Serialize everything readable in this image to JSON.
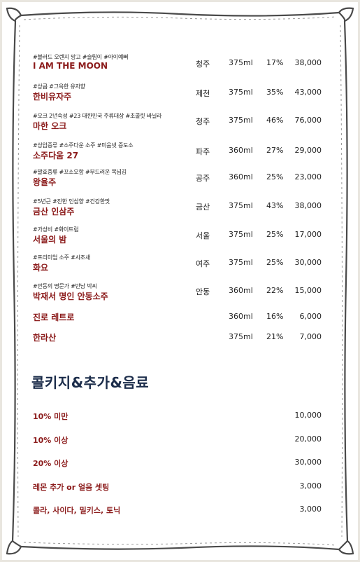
{
  "menu": {
    "items": [
      {
        "tags": "#블러드 오렌지 망고 #슬립이 #아이예뻐",
        "name": "I AM THE MOON",
        "origin": "청주",
        "volume": "375ml",
        "abv": "17%",
        "price": "38,000"
      },
      {
        "tags": "#상큼 #그윽한 유자향",
        "name": "한비유자주",
        "origin": "제천",
        "volume": "375ml",
        "abv": "35%",
        "price": "43,000"
      },
      {
        "tags": "#오크 2년숙성 #23 대한민국 주류대상 #초콜릿 바닐라",
        "name": "마한 오크",
        "origin": "청주",
        "volume": "375ml",
        "abv": "46%",
        "price": "76,000"
      },
      {
        "tags": "#상압증류 #소주다운 소주 #미움넷 증도소",
        "name": "소주다움 27",
        "origin": "파주",
        "volume": "360ml",
        "abv": "27%",
        "price": "29,000"
      },
      {
        "tags": "#발효증류 #꼬소오함 #부드러운 목넘김",
        "name": "왕율주",
        "origin": "공주",
        "volume": "360ml",
        "abv": "25%",
        "price": "23,000"
      },
      {
        "tags": "#5년근 #진한 인삼향 #건강한맛",
        "name": "금산 인삼주",
        "origin": "금산",
        "volume": "375ml",
        "abv": "43%",
        "price": "38,000"
      },
      {
        "tags": "#가성비 #화이트럼",
        "name": "서울의 밤",
        "origin": "서울",
        "volume": "375ml",
        "abv": "25%",
        "price": "17,000"
      },
      {
        "tags": "#프리미엄 소주 #시조새",
        "name": "화요",
        "origin": "여주",
        "volume": "375ml",
        "abv": "25%",
        "price": "30,000"
      },
      {
        "tags": "#안동의 명문가 #반남 박씨",
        "name": "박재서 명인 안동소주",
        "origin": "안동",
        "volume": "360ml",
        "abv": "22%",
        "price": "15,000"
      },
      {
        "tags": "",
        "name": "진로 레트로",
        "origin": "",
        "volume": "360ml",
        "abv": "16%",
        "price": "6,000"
      },
      {
        "tags": "",
        "name": "한라산",
        "origin": "",
        "volume": "375ml",
        "abv": "21%",
        "price": "7,000"
      }
    ]
  },
  "extras": {
    "title": "콜키지&추가&음료",
    "items": [
      {
        "label": "10% 미만",
        "price": "10,000"
      },
      {
        "label": "10% 이상",
        "price": "20,000"
      },
      {
        "label": "20% 이상",
        "price": "30,000"
      },
      {
        "label": "레몬 추가 or 얼음 셋팅",
        "price": "3,000"
      },
      {
        "label": "콜라, 사이다, 밀키스, 토닉",
        "price": "3,000"
      }
    ]
  },
  "colors": {
    "accent": "#8b1a1a",
    "title": "#1b2c4a",
    "border": "#5a5a5a"
  }
}
